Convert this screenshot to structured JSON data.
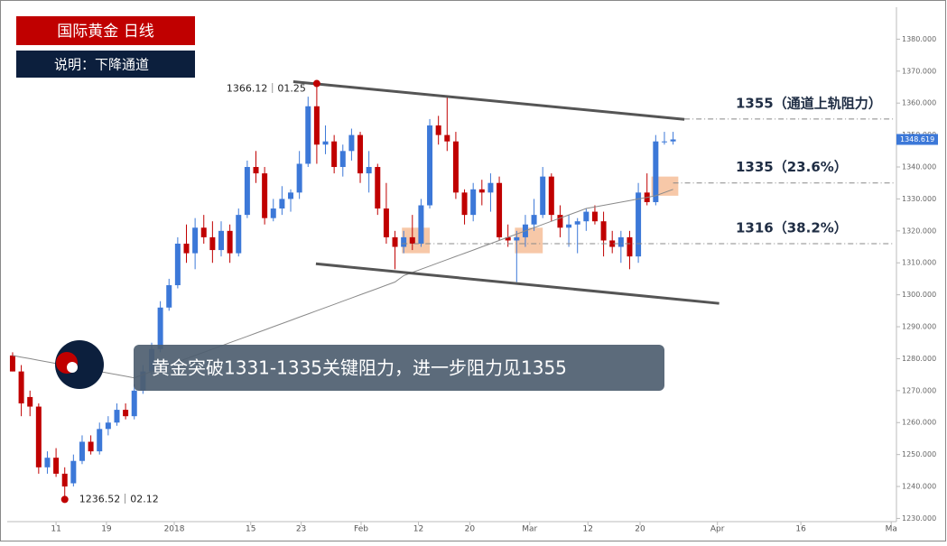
{
  "chart_data": {
    "type": "candlestick",
    "title": "国际黄金  日线",
    "subtitle": "说明：下降通道",
    "banner": "黄金突破1331-1335关键阻力，进一步阻力见1355",
    "high_label": "1366.12｜01.25",
    "low_label": "1236.52｜02.12",
    "last_price": 1348.619,
    "up_color": "#3c78d8",
    "down_color": "#c00000",
    "xlim": [
      -1.45,
      101.7
    ],
    "ylim": [
      1229,
      1390
    ],
    "yticks": [
      {
        "value": 1230,
        "label": "1230.000"
      },
      {
        "value": 1240,
        "label": "1240.000"
      },
      {
        "value": 1250,
        "label": "1250.000"
      },
      {
        "value": 1260,
        "label": "1260.000"
      },
      {
        "value": 1270,
        "label": "1270.000"
      },
      {
        "value": 1280,
        "label": "1280.000"
      },
      {
        "value": 1290,
        "label": "1290.000"
      },
      {
        "value": 1300,
        "label": "1300.000"
      },
      {
        "value": 1310,
        "label": "1310.000"
      },
      {
        "value": 1320,
        "label": "1320.000"
      },
      {
        "value": 1330,
        "label": "1330.000"
      },
      {
        "value": 1340,
        "label": "1340.000"
      },
      {
        "value": 1350,
        "label": "1350.000"
      },
      {
        "value": 1360,
        "label": "1360.000"
      },
      {
        "value": 1370,
        "label": "1370.000"
      },
      {
        "value": 1380,
        "label": "1380.000"
      }
    ],
    "xticks": [
      {
        "value": 5.0,
        "label": "11"
      },
      {
        "value": 10.8,
        "label": "19"
      },
      {
        "value": 18.6,
        "label": "2018"
      },
      {
        "value": 27.4,
        "label": "15"
      },
      {
        "value": 33.2,
        "label": "23"
      },
      {
        "value": 40.1,
        "label": "Feb"
      },
      {
        "value": 46.7,
        "label": "12"
      },
      {
        "value": 52.6,
        "label": "20"
      },
      {
        "value": 59.5,
        "label": "Mar"
      },
      {
        "value": 66.2,
        "label": "12"
      },
      {
        "value": 72.2,
        "label": "20"
      },
      {
        "value": 81.1,
        "label": "Apr"
      },
      {
        "value": 90.7,
        "label": "16"
      },
      {
        "value": 101.1,
        "label": "Ma"
      }
    ],
    "open": [
      1281,
      1276,
      1268,
      1265,
      1246,
      1249,
      1244,
      1241,
      1248,
      1254,
      1251,
      1258,
      1260,
      1264,
      1262,
      1270,
      1276,
      1283,
      1296,
      1303,
      1316,
      1313,
      1321,
      1318,
      1314,
      1320,
      1313,
      1325,
      1340,
      1338,
      1324,
      1327,
      1330,
      1332,
      1341,
      1359,
      1347,
      1348,
      1340,
      1345,
      1350,
      1338,
      1340,
      1327,
      1318,
      1315,
      1318,
      1316,
      1328,
      1353,
      1350,
      1348,
      1332,
      1325,
      1333,
      1332,
      1335,
      1318,
      1317,
      1318,
      1322,
      1325,
      1337,
      1325,
      1321,
      1322,
      1323,
      1326,
      1323,
      1317,
      1315,
      1318,
      1312,
      1332,
      1329,
      1348,
      1348
    ],
    "high": [
      1282,
      1278,
      1270,
      1266,
      1251,
      1252,
      1246,
      1250,
      1256,
      1256,
      1260,
      1262,
      1266,
      1266,
      1272,
      1278,
      1285,
      1298,
      1305,
      1318,
      1322,
      1324,
      1325,
      1323,
      1323,
      1322,
      1327,
      1342,
      1345,
      1340,
      1330,
      1334,
      1333,
      1345,
      1362,
      1366.12,
      1353,
      1350,
      1347,
      1352,
      1351,
      1345,
      1341,
      1335,
      1320,
      1320,
      1325,
      1330,
      1355,
      1356,
      1362,
      1351,
      1333,
      1335,
      1336,
      1338,
      1337,
      1322,
      1320,
      1325,
      1330,
      1340,
      1338,
      1328,
      1325,
      1324,
      1327,
      1328,
      1326,
      1320,
      1320,
      1320,
      1335,
      1338,
      1350,
      1351,
      1351
    ],
    "low": [
      1276,
      1262,
      1262,
      1244,
      1244,
      1243,
      1236.52,
      1240,
      1247,
      1250,
      1250,
      1256,
      1259,
      1261,
      1261,
      1269,
      1275,
      1282,
      1295,
      1302,
      1310,
      1308,
      1316,
      1310,
      1312,
      1310,
      1312,
      1324,
      1335,
      1322,
      1323,
      1325,
      1326,
      1330,
      1340,
      1341,
      1344,
      1338,
      1337,
      1342,
      1335,
      1332,
      1325,
      1316,
      1308,
      1313,
      1314,
      1315,
      1327,
      1347,
      1345,
      1330,
      1322,
      1323,
      1328,
      1326,
      1317,
      1315,
      1304,
      1315,
      1320,
      1324,
      1323,
      1318,
      1315,
      1313,
      1320,
      1322,
      1312,
      1313,
      1310,
      1308,
      1310,
      1328,
      1328,
      1347,
      1347
    ],
    "close": [
      1276,
      1266,
      1265,
      1246,
      1249,
      1244,
      1240,
      1248,
      1254,
      1251,
      1258,
      1260,
      1264,
      1262,
      1270,
      1276,
      1283,
      1296,
      1303,
      1316,
      1313,
      1321,
      1318,
      1314,
      1320,
      1313,
      1325,
      1340,
      1338,
      1324,
      1327,
      1330,
      1332,
      1341,
      1359,
      1347,
      1348,
      1340,
      1345,
      1350,
      1338,
      1340,
      1327,
      1318,
      1315,
      1318,
      1316,
      1328,
      1353,
      1350,
      1348,
      1332,
      1325,
      1333,
      1332,
      1335,
      1318,
      1317,
      1318,
      1322,
      1325,
      1337,
      1325,
      1321,
      1322,
      1323,
      1326,
      1323,
      1317,
      1315,
      1318,
      1312,
      1332,
      1329,
      1348,
      1348,
      1348.619
    ],
    "ma": {
      "color": "#8a8a8a",
      "values": [
        1281,
        1280.5,
        1280,
        1279.5,
        1279,
        1278.5,
        1278,
        1277.5,
        1277,
        1276.5,
        1276,
        1275.5,
        1275,
        1274.5,
        1274,
        1275,
        1276,
        1277,
        1278,
        1279,
        1280,
        1281,
        1282,
        1283,
        1284,
        1285,
        1286,
        1287,
        1288,
        1289,
        1290,
        1291,
        1292,
        1293,
        1294,
        1295,
        1296,
        1297,
        1298,
        1299,
        1300,
        1301,
        1302,
        1303,
        1304,
        1306,
        1307,
        1308,
        1309,
        1310,
        1311,
        1312,
        1313,
        1314,
        1315,
        1316,
        1317,
        1318,
        1319,
        1320,
        1321,
        1322,
        1323,
        1324,
        1325,
        1326,
        1327,
        1327.5,
        1328,
        1328.5,
        1329,
        1329.5,
        1330,
        1330.5,
        1331,
        1332,
        1333
      ]
    },
    "channel": [
      {
        "x": [
          32.3,
          77.3
        ],
        "y": [
          1366.7,
          1354.9
        ]
      },
      {
        "x": [
          34.9,
          81.3
        ],
        "y": [
          1309.7,
          1297.3
        ]
      }
    ],
    "levels": [
      {
        "value": 1355,
        "label": "1355（通道上轨阻力）",
        "x_start": 77.3
      },
      {
        "value": 1335,
        "label": "1335（23.6%）",
        "x_start": 76
      },
      {
        "value": 1316,
        "label": "1316（38.2%）",
        "x_start": 44.8
      }
    ],
    "zones": [
      {
        "x": [
          44.8,
          48
        ],
        "y": [
          1313,
          1321
        ]
      },
      {
        "x": [
          57.8,
          61
        ],
        "y": [
          1313,
          1321
        ]
      },
      {
        "x": [
          73.5,
          76.6
        ],
        "y": [
          1331,
          1337
        ]
      }
    ]
  }
}
